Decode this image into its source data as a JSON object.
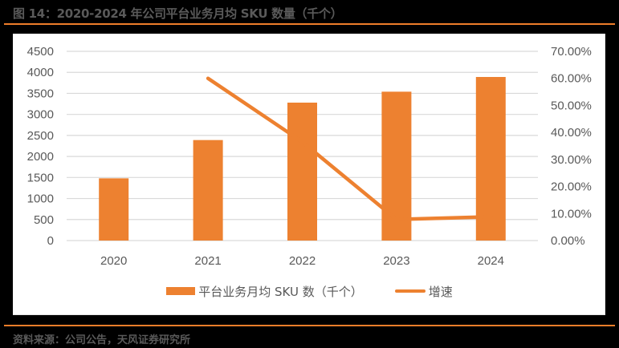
{
  "figure": {
    "title": "图 14：2020-2024 年公司平台业务月均 SKU 数量（千个）",
    "source": "资料来源：公司公告，天风证券研究所",
    "accent_color": "#ef7d2a",
    "bar_color": "#ed8130",
    "line_color": "#ed8130"
  },
  "chart_data": {
    "type": "bar+line",
    "title": "2020-2024 年公司平台业务月均 SKU 数量（千个）",
    "categories": [
      "2020",
      "2021",
      "2022",
      "2023",
      "2024"
    ],
    "series": [
      {
        "name": "平台业务月均 SKU 数（千个）",
        "type": "bar",
        "axis": "left",
        "values": [
          1480,
          2390,
          3280,
          3540,
          3890
        ]
      },
      {
        "name": "增速",
        "type": "line",
        "axis": "right",
        "values": [
          null,
          0.6,
          0.365,
          0.078,
          0.088
        ]
      }
    ],
    "left_axis": {
      "ylim": [
        0,
        4500
      ],
      "ticks": [
        0,
        500,
        1000,
        1500,
        2000,
        2500,
        3000,
        3500,
        4000,
        4500
      ],
      "tick_labels": [
        "0",
        "500",
        "1000",
        "1500",
        "2000",
        "2500",
        "3000",
        "3500",
        "4000",
        "4500"
      ]
    },
    "right_axis": {
      "ylim": [
        0,
        0.7
      ],
      "ticks": [
        0,
        0.1,
        0.2,
        0.3,
        0.4,
        0.5,
        0.6,
        0.7
      ],
      "tick_labels": [
        "0.00%",
        "10.00%",
        "20.00%",
        "30.00%",
        "40.00%",
        "50.00%",
        "60.00%",
        "70.00%"
      ]
    },
    "xlabel": "",
    "ylabel": "",
    "grid": true,
    "legend_position": "bottom"
  },
  "legend": {
    "bar_label": "平台业务月均 SKU 数（千个）",
    "line_label": "增速"
  }
}
